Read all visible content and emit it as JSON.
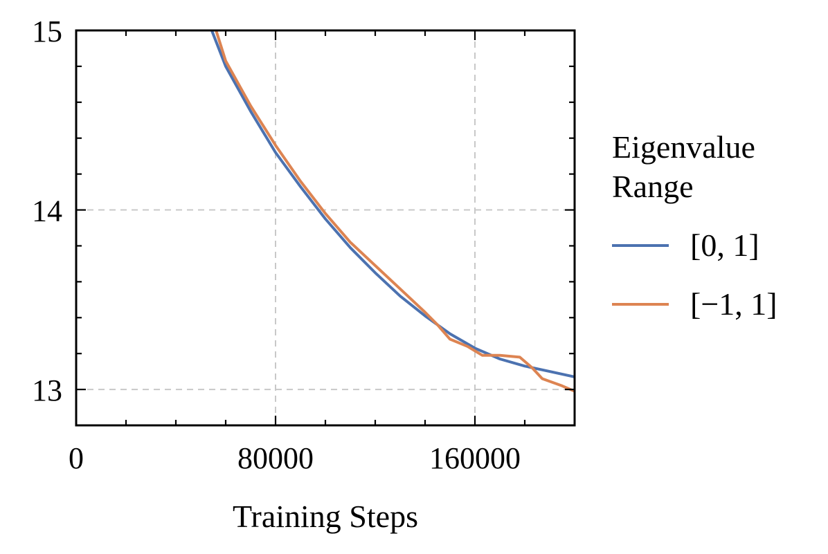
{
  "chart_data": {
    "type": "line",
    "xlabel": "Training Steps",
    "ylabel": "",
    "xlim": [
      0,
      200000
    ],
    "ylim": [
      12.8,
      15
    ],
    "xticks": [
      0,
      80000,
      160000
    ],
    "xtick_labels": [
      "0",
      "80000",
      "160000"
    ],
    "xminor_step": 20000,
    "yticks": [
      13,
      14,
      15
    ],
    "ytick_labels": [
      "13",
      "14",
      "15"
    ],
    "yminor_step": 0.2,
    "grid": true,
    "legend": {
      "title_lines": [
        "Eigenvalue",
        "Range"
      ],
      "placement": "outside-right"
    },
    "series": [
      {
        "name": "[0, 1]",
        "color": "#4c72b0",
        "x": [
          53000,
          60000,
          70000,
          80000,
          90000,
          100000,
          110000,
          120000,
          130000,
          140000,
          150000,
          160000,
          170000,
          180000,
          190000,
          200000
        ],
        "y": [
          15.05,
          14.8,
          14.55,
          14.32,
          14.13,
          13.95,
          13.79,
          13.65,
          13.52,
          13.41,
          13.31,
          13.23,
          13.17,
          13.13,
          13.1,
          13.07
        ]
      },
      {
        "name": "[−1, 1]",
        "color": "#dd8452",
        "x": [
          55000,
          60000,
          70000,
          80000,
          90000,
          100000,
          110000,
          120000,
          130000,
          140000,
          145000,
          150000,
          157000,
          163000,
          170000,
          178000,
          183000,
          187000,
          195000,
          200000
        ],
        "y": [
          15.05,
          14.83,
          14.58,
          14.36,
          14.16,
          13.98,
          13.82,
          13.69,
          13.56,
          13.43,
          13.36,
          13.28,
          13.24,
          13.19,
          13.19,
          13.18,
          13.12,
          13.06,
          13.02,
          12.99
        ]
      }
    ]
  }
}
